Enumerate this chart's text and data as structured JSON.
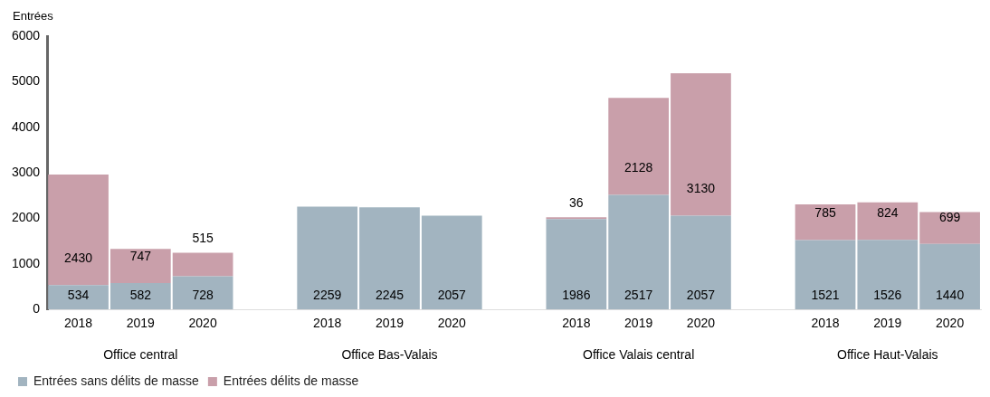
{
  "chart_data": {
    "type": "bar",
    "stacked": true,
    "ylabel": "Entrées",
    "categories": [
      "2018",
      "2019",
      "2020",
      null,
      "2018",
      "2019",
      "2020",
      null,
      "2018",
      "2019",
      "2020",
      null,
      "2018",
      "2019",
      "2020"
    ],
    "series": [
      {
        "name": "Entrées sans délits de masse",
        "color": "#a2b4c0",
        "values": [
          534,
          582,
          728,
          null,
          2259,
          2245,
          2057,
          null,
          1986,
          2517,
          2057,
          null,
          1521,
          1526,
          1440
        ]
      },
      {
        "name": "Entrées délits de masse",
        "color": "#c99faa",
        "values": [
          2430,
          747,
          515,
          null,
          null,
          null,
          null,
          null,
          36,
          2128,
          3130,
          null,
          785,
          824,
          699
        ]
      }
    ],
    "ylim": [
      0,
      6000
    ],
    "yticks": [
      0,
      1000,
      2000,
      3000,
      4000,
      5000,
      6000
    ],
    "grid": false,
    "legend": "bottom left",
    "data_labels": true,
    "annotations": [
      "Office central",
      "Office Bas-Valais",
      "Office Valais central",
      "Office Haut-Valais"
    ]
  }
}
